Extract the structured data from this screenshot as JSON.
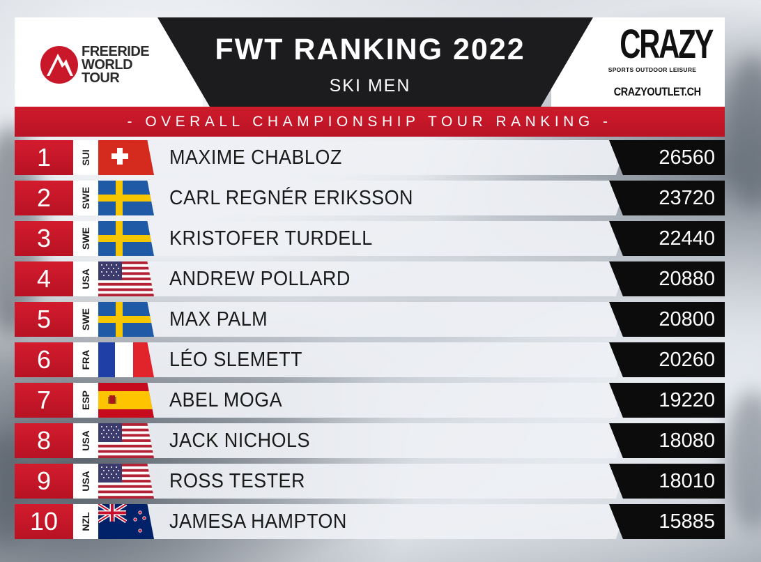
{
  "header": {
    "title": "FWT RANKING 2022",
    "subtitle": "SKI MEN",
    "logo_left_line1": "FREERIDE",
    "logo_left_line2": "WORLD",
    "logo_left_line3": "TOUR",
    "logo_right_word": "CRAZY",
    "logo_right_tagline": "SPORTS OUTDOOR LEISURE",
    "logo_right_url": "CRAZYOUTLET.CH"
  },
  "band": {
    "text": "- OVERALL CHAMPIONSHIP TOUR RANKING -"
  },
  "colors": {
    "accent_red": "#c8182a",
    "header_dark": "#1c1c1f",
    "points_bg": "#0c0c0c"
  },
  "rows": [
    {
      "rank": "1",
      "country": "SUI",
      "flag": "sui-flag-icon",
      "name": "MAXIME CHABLOZ",
      "points": "26560"
    },
    {
      "rank": "2",
      "country": "SWE",
      "flag": "swe-flag-icon",
      "name": "CARL REGNÉR ERIKSSON",
      "points": "23720"
    },
    {
      "rank": "3",
      "country": "SWE",
      "flag": "swe-flag-icon",
      "name": "KRISTOFER TURDELL",
      "points": "22440"
    },
    {
      "rank": "4",
      "country": "USA",
      "flag": "usa-flag-icon",
      "name": "ANDREW POLLARD",
      "points": "20880"
    },
    {
      "rank": "5",
      "country": "SWE",
      "flag": "swe-flag-icon",
      "name": "MAX PALM",
      "points": "20800"
    },
    {
      "rank": "6",
      "country": "FRA",
      "flag": "fra-flag-icon",
      "name": "LÉO SLEMETT",
      "points": "20260"
    },
    {
      "rank": "7",
      "country": "ESP",
      "flag": "esp-flag-icon",
      "name": "ABEL MOGA",
      "points": "19220"
    },
    {
      "rank": "8",
      "country": "USA",
      "flag": "usa-flag-icon",
      "name": "JACK NICHOLS",
      "points": "18080"
    },
    {
      "rank": "9",
      "country": "USA",
      "flag": "usa-flag-icon",
      "name": "ROSS TESTER",
      "points": "18010"
    },
    {
      "rank": "10",
      "country": "NZL",
      "flag": "nzl-flag-icon",
      "name": "JAMESA HAMPTON",
      "points": "15885"
    }
  ]
}
